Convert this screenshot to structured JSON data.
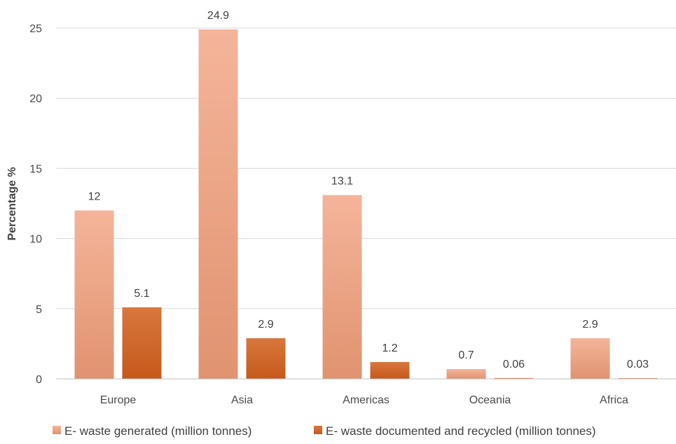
{
  "chart_data": {
    "type": "bar",
    "title": "",
    "xlabel": "",
    "ylabel": "Percentage %",
    "ylim": [
      0,
      25
    ],
    "yticks": [
      0,
      5,
      10,
      15,
      20,
      25
    ],
    "grid": true,
    "legend_position": "bottom",
    "categories": [
      "Europe",
      "Asia",
      "Americas",
      "Oceania",
      "Africa"
    ],
    "series": [
      {
        "name": "E- waste generated (million tonnes)",
        "values": [
          12,
          24.9,
          13.1,
          0.7,
          2.9
        ],
        "labels": [
          "12",
          "24.9",
          "13.1",
          "0.7",
          "2.9"
        ],
        "color_top": "#f5b49a",
        "color_bottom": "#e0936f"
      },
      {
        "name": "E- waste documented and recycled (million tonnes)",
        "values": [
          5.1,
          2.9,
          1.2,
          0.06,
          0.03
        ],
        "labels": [
          "5.1",
          "2.9",
          "1.2",
          "0.06",
          "0.03"
        ],
        "color_top": "#d9773e",
        "color_bottom": "#c5591a"
      }
    ]
  }
}
